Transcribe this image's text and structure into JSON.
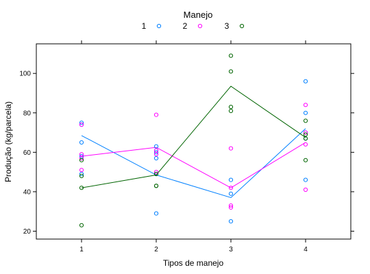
{
  "chart_data": {
    "type": "scatter",
    "xlabel": "Tipos de manejo",
    "ylabel": "Produção (kg/parcela)",
    "x_categories": [
      "1",
      "2",
      "3",
      "4"
    ],
    "ylim": [
      16,
      115
    ],
    "yticks": [
      20,
      40,
      60,
      80,
      100
    ],
    "legend": {
      "title": "Manejo",
      "placement": "top"
    },
    "series": [
      {
        "name": "1",
        "color": "#0080ff",
        "points": [
          {
            "x": 1,
            "y": 75
          },
          {
            "x": 1,
            "y": 74
          },
          {
            "x": 1,
            "y": 65
          },
          {
            "x": 1,
            "y": 58
          },
          {
            "x": 1,
            "y": 49
          },
          {
            "x": 2,
            "y": 63
          },
          {
            "x": 2,
            "y": 60
          },
          {
            "x": 2,
            "y": 57
          },
          {
            "x": 2,
            "y": 49
          },
          {
            "x": 2,
            "y": 29
          },
          {
            "x": 3,
            "y": 46
          },
          {
            "x": 3,
            "y": 39
          },
          {
            "x": 3,
            "y": 25
          },
          {
            "x": 4,
            "y": 96
          },
          {
            "x": 4,
            "y": 80
          },
          {
            "x": 4,
            "y": 70
          },
          {
            "x": 4,
            "y": 67
          },
          {
            "x": 4,
            "y": 46
          }
        ],
        "line": [
          68.5,
          48.5,
          37,
          72
        ]
      },
      {
        "name": "2",
        "color": "#ff00ff",
        "points": [
          {
            "x": 1,
            "y": 74
          },
          {
            "x": 1,
            "y": 59
          },
          {
            "x": 1,
            "y": 57
          },
          {
            "x": 1,
            "y": 51
          },
          {
            "x": 2,
            "y": 79
          },
          {
            "x": 2,
            "y": 61
          },
          {
            "x": 2,
            "y": 59
          },
          {
            "x": 2,
            "y": 50
          },
          {
            "x": 3,
            "y": 62
          },
          {
            "x": 3,
            "y": 42
          },
          {
            "x": 3,
            "y": 33
          },
          {
            "x": 3,
            "y": 32
          },
          {
            "x": 4,
            "y": 84
          },
          {
            "x": 4,
            "y": 70
          },
          {
            "x": 4,
            "y": 64
          },
          {
            "x": 4,
            "y": 41
          }
        ],
        "line": [
          58,
          62.5,
          42,
          65
        ]
      },
      {
        "name": "3",
        "color": "#006400",
        "points": [
          {
            "x": 1,
            "y": 56
          },
          {
            "x": 1,
            "y": 48
          },
          {
            "x": 1,
            "y": 42
          },
          {
            "x": 1,
            "y": 23
          },
          {
            "x": 2,
            "y": 49
          },
          {
            "x": 2,
            "y": 43
          },
          {
            "x": 2,
            "y": 43
          },
          {
            "x": 3,
            "y": 109
          },
          {
            "x": 3,
            "y": 101
          },
          {
            "x": 3,
            "y": 83
          },
          {
            "x": 3,
            "y": 81
          },
          {
            "x": 4,
            "y": 76
          },
          {
            "x": 4,
            "y": 69
          },
          {
            "x": 4,
            "y": 67
          },
          {
            "x": 4,
            "y": 56
          }
        ],
        "line": [
          42,
          48.5,
          93.5,
          67.5
        ]
      }
    ]
  }
}
